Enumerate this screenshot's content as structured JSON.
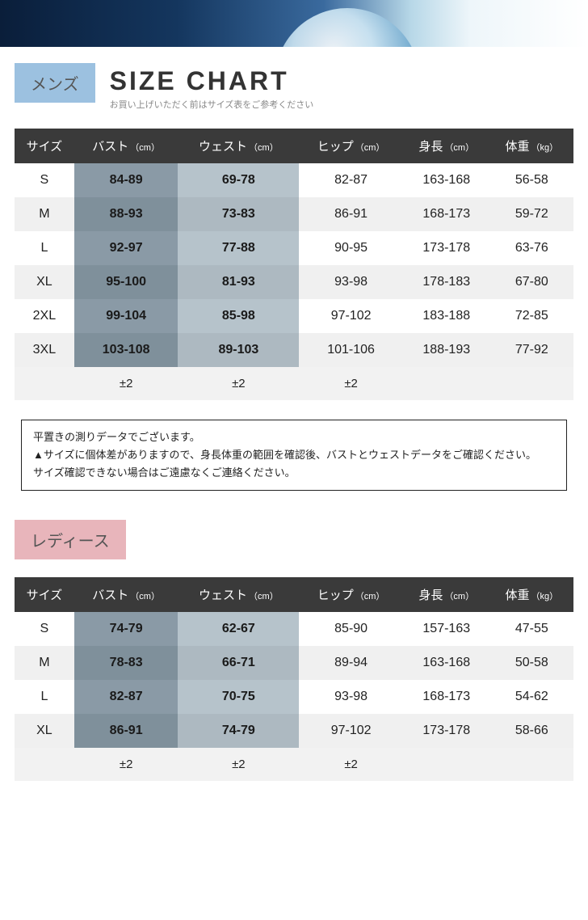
{
  "banner": {
    "bg_colors": [
      "#0a1e3a",
      "#14365e",
      "#3a6a9e",
      "#b8d8e8",
      "#ffffff"
    ]
  },
  "title": {
    "main": "SIZE CHART",
    "sub": "お買い上げいただく前はサイズ表をご参考ください"
  },
  "columns": [
    {
      "label": "サイズ",
      "unit": ""
    },
    {
      "label": "バスト",
      "unit": "（cm）"
    },
    {
      "label": "ウェスト",
      "unit": "（cm）"
    },
    {
      "label": "ヒップ",
      "unit": "（cm）"
    },
    {
      "label": "身長",
      "unit": "（cm）"
    },
    {
      "label": "体重",
      "unit": "（kg）"
    }
  ],
  "mens": {
    "tag": "メンズ",
    "tag_bg": "#9cc1e0",
    "rows": [
      {
        "size": "S",
        "bust": "84-89",
        "waist": "69-78",
        "hip": "82-87",
        "height": "163-168",
        "weight": "56-58"
      },
      {
        "size": "M",
        "bust": "88-93",
        "waist": "73-83",
        "hip": "86-91",
        "height": "168-173",
        "weight": "59-72"
      },
      {
        "size": "L",
        "bust": "92-97",
        "waist": "77-88",
        "hip": "90-95",
        "height": "173-178",
        "weight": "63-76"
      },
      {
        "size": "XL",
        "bust": "95-100",
        "waist": "81-93",
        "hip": "93-98",
        "height": "178-183",
        "weight": "67-80"
      },
      {
        "size": "2XL",
        "bust": "99-104",
        "waist": "85-98",
        "hip": "97-102",
        "height": "183-188",
        "weight": "72-85"
      },
      {
        "size": "3XL",
        "bust": "103-108",
        "waist": "89-103",
        "hip": "101-106",
        "height": "188-193",
        "weight": "77-92"
      }
    ],
    "tolerance": {
      "bust": "±2",
      "waist": "±2",
      "hip": "±2"
    }
  },
  "womens": {
    "tag": "レディース",
    "tag_bg": "#e8b5bb",
    "rows": [
      {
        "size": "S",
        "bust": "74-79",
        "waist": "62-67",
        "hip": "85-90",
        "height": "157-163",
        "weight": "47-55"
      },
      {
        "size": "M",
        "bust": "78-83",
        "waist": "66-71",
        "hip": "89-94",
        "height": "163-168",
        "weight": "50-58"
      },
      {
        "size": "L",
        "bust": "82-87",
        "waist": "70-75",
        "hip": "93-98",
        "height": "168-173",
        "weight": "54-62"
      },
      {
        "size": "XL",
        "bust": "86-91",
        "waist": "74-79",
        "hip": "97-102",
        "height": "173-178",
        "weight": "58-66"
      }
    ],
    "tolerance": {
      "bust": "±2",
      "waist": "±2",
      "hip": "±2"
    }
  },
  "note": {
    "line1": "平置きの測りデータでございます。",
    "line2": "▲サイズに個体差がありますので、身長体重の範囲を確認後、バストとウェストデータをご確認ください。",
    "line3": "サイズ確認できない場合はご遠慮なくご連絡ください。"
  },
  "style": {
    "header_bg": "#3a3a3a",
    "header_fg": "#ffffff",
    "row_odd": "#ffffff",
    "row_even": "#f0f0f0",
    "bust_bg_odd": "#8a9aa6",
    "bust_bg_even": "#7f909b",
    "waist_bg_odd": "#b6c3cb",
    "waist_bg_even": "#adb9c1",
    "title_fontsize": 32,
    "body_fontsize": 16,
    "unit_fontsize": 11
  }
}
